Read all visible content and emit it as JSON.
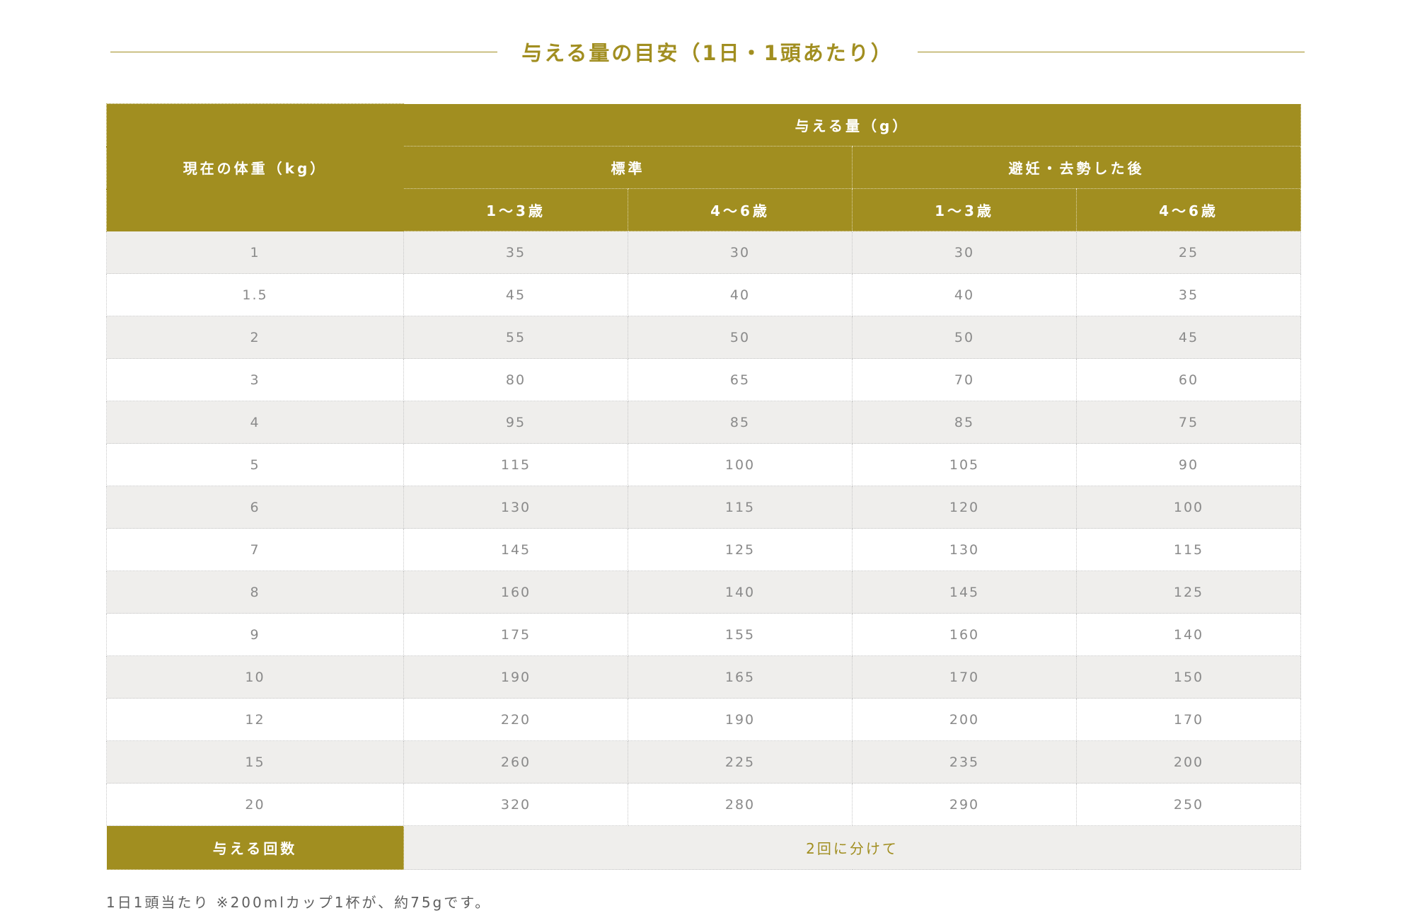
{
  "page": {
    "title": "与える量の目安（1日・1頭あたり）",
    "note": "1日1頭当たり ※200mlカップ1杯が、約75gです。"
  },
  "colors": {
    "accent": "#a18e20",
    "row_alt": "#efeeec",
    "data_text": "#8a8a8a"
  },
  "table": {
    "weight_header": "現在の体重（kg）",
    "group_header": "与える量（g）",
    "subgroups": [
      "標準",
      "避妊・去勢した後"
    ],
    "age_headers": [
      "1～3歳",
      "4～6歳",
      "1～3歳",
      "4～6歳"
    ],
    "rows": [
      {
        "weight": "1",
        "values": [
          "35",
          "30",
          "30",
          "25"
        ]
      },
      {
        "weight": "1.5",
        "values": [
          "45",
          "40",
          "40",
          "35"
        ]
      },
      {
        "weight": "2",
        "values": [
          "55",
          "50",
          "50",
          "45"
        ]
      },
      {
        "weight": "3",
        "values": [
          "80",
          "65",
          "70",
          "60"
        ]
      },
      {
        "weight": "4",
        "values": [
          "95",
          "85",
          "85",
          "75"
        ]
      },
      {
        "weight": "5",
        "values": [
          "115",
          "100",
          "105",
          "90"
        ]
      },
      {
        "weight": "6",
        "values": [
          "130",
          "115",
          "120",
          "100"
        ]
      },
      {
        "weight": "7",
        "values": [
          "145",
          "125",
          "130",
          "115"
        ]
      },
      {
        "weight": "8",
        "values": [
          "160",
          "140",
          "145",
          "125"
        ]
      },
      {
        "weight": "9",
        "values": [
          "175",
          "155",
          "160",
          "140"
        ]
      },
      {
        "weight": "10",
        "values": [
          "190",
          "165",
          "170",
          "150"
        ]
      },
      {
        "weight": "12",
        "values": [
          "220",
          "190",
          "200",
          "170"
        ]
      },
      {
        "weight": "15",
        "values": [
          "260",
          "225",
          "235",
          "200"
        ]
      },
      {
        "weight": "20",
        "values": [
          "320",
          "280",
          "290",
          "250"
        ]
      }
    ],
    "footer_label": "与える回数",
    "footer_value": "2回に分けて"
  }
}
